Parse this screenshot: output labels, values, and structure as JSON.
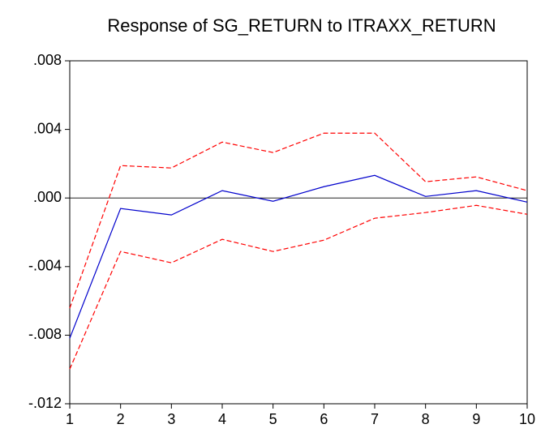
{
  "chart_data": {
    "type": "line",
    "title": "Response of SG_RETURN to ITRAXX_RETURN",
    "x": [
      1,
      2,
      3,
      4,
      5,
      6,
      7,
      8,
      9,
      10
    ],
    "series": [
      {
        "color": "#0000cc",
        "dashed": false,
        "values": [
          -0.00818,
          -0.00061,
          -0.00099,
          0.00043,
          -0.00019,
          0.00066,
          0.00132,
          9e-05,
          0.00043,
          -0.00024
        ]
      },
      {
        "color": "#ff0000",
        "dashed": true,
        "values": [
          -0.00643,
          0.00189,
          0.00175,
          0.00326,
          0.00265,
          0.00378,
          0.00378,
          0.00095,
          0.00123,
          0.00043
        ]
      },
      {
        "color": "#ff0000",
        "dashed": true,
        "values": [
          -0.00998,
          -0.00312,
          -0.00378,
          -0.00241,
          -0.00312,
          -0.00246,
          -0.00118,
          -0.00085,
          -0.00043,
          -0.00095
        ]
      }
    ],
    "xlim": [
      1,
      10
    ],
    "xticks": [
      1,
      2,
      3,
      4,
      5,
      6,
      7,
      8,
      9,
      10
    ],
    "ylim": [
      -0.012,
      0.008
    ],
    "yticks": [
      {
        "value": -0.012,
        "label": "-.012"
      },
      {
        "value": -0.008,
        "label": "-.008"
      },
      {
        "value": -0.004,
        "label": "-.004"
      },
      {
        "value": 0,
        "label": ".000"
      },
      {
        "value": 0.004,
        "label": ".004"
      },
      {
        "value": 0.008,
        "label": ".008"
      }
    ],
    "zero_line": true
  }
}
